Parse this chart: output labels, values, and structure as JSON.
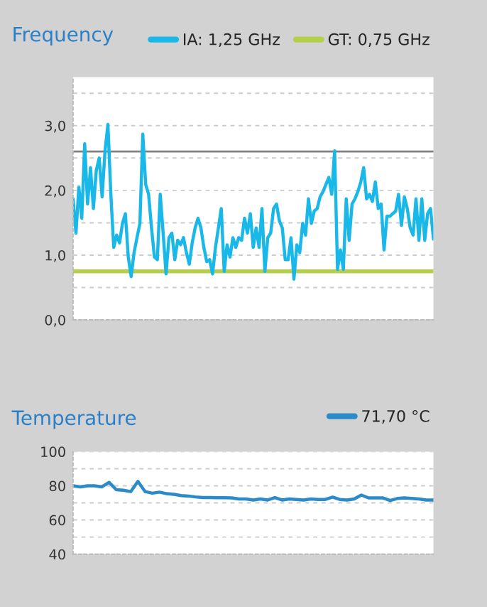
{
  "chart_data": [
    {
      "type": "line",
      "title": "Frequency",
      "legend": "top right",
      "grid": "y",
      "tick_labels": "y",
      "marker": "none",
      "line_style": "solid",
      "categories": [
        null,
        null,
        null,
        null,
        null,
        null,
        null,
        null,
        null,
        null,
        null,
        null,
        null,
        null,
        null,
        null,
        null,
        null,
        null,
        null,
        null,
        null,
        null,
        null,
        null,
        null,
        null,
        null,
        null,
        null,
        null,
        null,
        null,
        null,
        null,
        null,
        null,
        null,
        null,
        null,
        null,
        null,
        null,
        null,
        null,
        null,
        null,
        null,
        null,
        null,
        null,
        null,
        null,
        null,
        null,
        null,
        null,
        null,
        null,
        null,
        null,
        null,
        null,
        null,
        null,
        null,
        null,
        null,
        null,
        null,
        null,
        null,
        null,
        null,
        null,
        null,
        null,
        null,
        null,
        null,
        null,
        null,
        null,
        null,
        null,
        null,
        null,
        null,
        null,
        null,
        null,
        null,
        null,
        null,
        null,
        null,
        null,
        null,
        null,
        null,
        null,
        null,
        null,
        null,
        null,
        null,
        null,
        null,
        null,
        null,
        null,
        null,
        null,
        null,
        null,
        null,
        null,
        null,
        null,
        null,
        null,
        null,
        null,
        null,
        null
      ],
      "series": [
        {
          "name": "IA: 1,25 GHz",
          "color": "#1ab8e8",
          "values": [
            1.87,
            1.34,
            2.05,
            1.57,
            2.72,
            1.79,
            2.35,
            1.72,
            2.31,
            2.5,
            1.9,
            2.61,
            3.02,
            1.94,
            1.12,
            1.31,
            1.19,
            1.49,
            1.64,
            0.97,
            0.67,
            1.04,
            1.27,
            1.49,
            2.87,
            2.09,
            1.94,
            1.42,
            0.97,
            0.93,
            1.94,
            1.34,
            0.71,
            1.27,
            1.34,
            0.93,
            1.23,
            1.16,
            1.27,
            1.04,
            0.86,
            1.19,
            1.42,
            1.57,
            1.42,
            1.12,
            0.9,
            0.93,
            0.71,
            1.12,
            1.42,
            1.72,
            0.75,
            1.16,
            0.97,
            1.27,
            1.12,
            1.27,
            1.23,
            1.57,
            1.34,
            1.64,
            1.12,
            1.42,
            1.12,
            1.72,
            0.75,
            1.27,
            1.34,
            1.72,
            1.79,
            1.53,
            1.42,
            0.93,
            0.93,
            1.27,
            0.63,
            1.16,
            1.04,
            1.49,
            1.31,
            1.87,
            1.49,
            1.68,
            1.72,
            1.9,
            1.98,
            2.09,
            2.2,
            1.94,
            2.61,
            0.78,
            1.08,
            0.78,
            1.87,
            1.23,
            1.79,
            1.87,
            1.98,
            2.13,
            2.35,
            1.87,
            1.94,
            1.83,
            2.13,
            1.72,
            1.79,
            1.08,
            1.6,
            1.6,
            1.64,
            1.68,
            1.94,
            1.46,
            1.9,
            1.72,
            1.42,
            1.31,
            1.87,
            1.23,
            1.87,
            1.23,
            1.64,
            1.72,
            1.25
          ]
        }
      ],
      "ref_lines": [
        {
          "axis": "y",
          "value": 2.6,
          "color": "#808080"
        },
        {
          "axis": "y",
          "value": 0.75,
          "label": "GT: 0,75 GHz",
          "color": "#b4d04a"
        }
      ],
      "ylim": [
        0,
        3.75
      ],
      "yticks": [
        {
          "value": 0,
          "label": "0,0"
        },
        {
          "value": 0.5,
          "label": null
        },
        {
          "value": 1,
          "label": "1,0"
        },
        {
          "value": 1.5,
          "label": null
        },
        {
          "value": 2,
          "label": "2,0"
        },
        {
          "value": 2.5,
          "label": null
        },
        {
          "value": 3,
          "label": "3,0"
        },
        {
          "value": 3.5,
          "label": null
        }
      ]
    },
    {
      "type": "line",
      "title": "Temperature",
      "legend": "top right",
      "grid": "y",
      "tick_labels": "y",
      "marker": "none",
      "line_style": "solid",
      "categories": [
        null,
        null,
        null,
        null,
        null,
        null,
        null,
        null,
        null,
        null,
        null,
        null,
        null,
        null,
        null,
        null,
        null,
        null,
        null,
        null,
        null,
        null,
        null,
        null,
        null,
        null,
        null,
        null,
        null,
        null,
        null,
        null,
        null,
        null,
        null,
        null,
        null,
        null,
        null,
        null,
        null,
        null,
        null,
        null,
        null,
        null,
        null,
        null,
        null,
        null,
        null
      ],
      "series": [
        {
          "name": "71,70 °C",
          "color": "#2b8bc9",
          "values": [
            80,
            79.4,
            80,
            80,
            79.4,
            82,
            77.7,
            77.4,
            76.6,
            82.6,
            76.6,
            75.7,
            76.3,
            75.4,
            75,
            74.3,
            74,
            73.5,
            73.1,
            73.1,
            73,
            73,
            72.9,
            72.3,
            72.3,
            71.7,
            72.3,
            71.7,
            73.1,
            71.7,
            72.3,
            72,
            71.7,
            72.3,
            72,
            72,
            73.4,
            72,
            71.7,
            72.3,
            74.6,
            72.9,
            72.9,
            72.9,
            71.4,
            72.6,
            72.9,
            72.6,
            72.3,
            71.7,
            71.7
          ]
        }
      ],
      "ylim": [
        40,
        100
      ],
      "yticks": [
        40,
        {
          "value": 50,
          "label": null
        },
        60,
        {
          "value": 70,
          "label": null
        },
        80,
        {
          "value": 90,
          "label": null
        },
        100
      ]
    }
  ]
}
